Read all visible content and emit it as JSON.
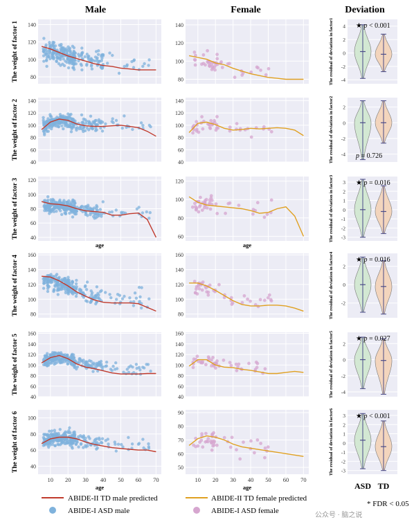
{
  "headers": {
    "male": "Male",
    "female": "Female",
    "deviation": "Deviation"
  },
  "age_label": "age",
  "violin_groups": [
    "ASD",
    "TD"
  ],
  "legend": {
    "male_line": "ABIDE-II TD  male predicted",
    "male_points": "ABIDE-I ASD male",
    "female_line": "ABIDE-II TD female  predicted",
    "female_points": "ABIDE-I ASD female",
    "fdr_note": "* FDR < 0.05",
    "watermark": "公众号 · 脑之说"
  },
  "colors": {
    "male_line": "#c0392b",
    "male_points": "#7fb2dc",
    "female_line": "#e0a020",
    "female_points": "#d6a6cf",
    "asd_violin": "#d3e8d3",
    "td_violin": "#f3d5bd",
    "panel_bg": "#ececf5",
    "grid": "#ffffff",
    "violin_edge": "#4a4a88"
  },
  "chart_data": [
    {
      "type": "scatter",
      "sex": "male",
      "ylabel": "The weight of factor 1",
      "ylim": [
        72,
        146
      ],
      "yticks": [
        80,
        100,
        120,
        140
      ],
      "curve_x": [
        5,
        10,
        15,
        20,
        25,
        30,
        35,
        40,
        45,
        50,
        55,
        60,
        65,
        70
      ],
      "curve_y": [
        115,
        112,
        108,
        104,
        101,
        98,
        95,
        93,
        92,
        90,
        89,
        88,
        88,
        88
      ],
      "cloud": {
        "center": 105,
        "spread": 14,
        "n": 260,
        "seed": 11
      }
    },
    {
      "type": "scatter",
      "sex": "female",
      "ylabel": "",
      "ylim": [
        75,
        146
      ],
      "yticks": [
        80,
        100,
        120,
        140
      ],
      "curve_x": [
        5,
        10,
        15,
        20,
        25,
        30,
        35,
        40,
        45,
        50,
        55,
        60,
        65,
        70
      ],
      "curve_y": [
        106,
        104,
        102,
        98,
        96,
        92,
        89,
        86,
        84,
        82,
        81,
        80,
        80,
        80
      ],
      "cloud": {
        "center": 98,
        "spread": 13,
        "n": 45,
        "seed": 12
      }
    },
    {
      "type": "scatter",
      "sex": "male",
      "ylabel": "The weight of factor 2",
      "ylim": [
        40,
        145
      ],
      "yticks": [
        40,
        60,
        80,
        100,
        120,
        140
      ],
      "curve_x": [
        5,
        10,
        15,
        20,
        25,
        30,
        35,
        40,
        45,
        50,
        55,
        60,
        65,
        70
      ],
      "curve_y": [
        93,
        105,
        110,
        108,
        102,
        99,
        98,
        98,
        99,
        100,
        98,
        96,
        90,
        82
      ],
      "cloud": {
        "center": 102,
        "spread": 14,
        "n": 260,
        "seed": 21
      }
    },
    {
      "type": "scatter",
      "sex": "female",
      "ylabel": "",
      "ylim": [
        40,
        145
      ],
      "yticks": [
        40,
        60,
        80,
        100,
        120,
        140
      ],
      "curve_x": [
        5,
        10,
        15,
        20,
        25,
        30,
        35,
        40,
        45,
        50,
        55,
        60,
        65,
        70
      ],
      "curve_y": [
        88,
        103,
        105,
        101,
        95,
        92,
        93,
        95,
        94,
        95,
        96,
        95,
        92,
        83
      ],
      "cloud": {
        "center": 98,
        "spread": 14,
        "n": 45,
        "seed": 22
      }
    },
    {
      "type": "scatter",
      "sex": "male",
      "ylabel": "The weight of factor 3",
      "ylim": [
        35,
        125
      ],
      "yticks": [
        40,
        60,
        80,
        100,
        120
      ],
      "curve_x": [
        5,
        10,
        15,
        20,
        25,
        30,
        35,
        40,
        45,
        50,
        55,
        60,
        65,
        70
      ],
      "curve_y": [
        90,
        87,
        86,
        84,
        80,
        77,
        76,
        75,
        71,
        71,
        73,
        74,
        65,
        40
      ],
      "cloud": {
        "center": 80,
        "spread": 12,
        "n": 260,
        "seed": 31
      }
    },
    {
      "type": "scatter",
      "sex": "female",
      "ylabel": "",
      "ylim": [
        55,
        125
      ],
      "yticks": [
        60,
        80,
        100,
        120
      ],
      "curve_x": [
        5,
        10,
        15,
        20,
        25,
        30,
        35,
        40,
        45,
        50,
        55,
        60,
        65,
        70
      ],
      "curve_y": [
        103,
        97,
        94,
        93,
        92,
        91,
        90,
        88,
        85,
        86,
        90,
        92,
        82,
        60
      ],
      "cloud": {
        "center": 96,
        "spread": 11,
        "n": 45,
        "seed": 32
      }
    },
    {
      "type": "scatter",
      "sex": "male",
      "ylabel": "The weight of factor 4",
      "ylim": [
        75,
        162
      ],
      "yticks": [
        80,
        100,
        120,
        140,
        160
      ],
      "curve_x": [
        5,
        10,
        15,
        20,
        25,
        30,
        35,
        40,
        45,
        50,
        55,
        60,
        65,
        70
      ],
      "curve_y": [
        131,
        130,
        125,
        118,
        110,
        104,
        99,
        96,
        95,
        95,
        95,
        94,
        89,
        84
      ],
      "cloud": {
        "center": 115,
        "spread": 14,
        "n": 260,
        "seed": 41
      }
    },
    {
      "type": "scatter",
      "sex": "female",
      "ylabel": "",
      "ylim": [
        75,
        162
      ],
      "yticks": [
        80,
        100,
        120,
        140,
        160
      ],
      "curve_x": [
        5,
        10,
        15,
        20,
        25,
        30,
        35,
        40,
        45,
        50,
        55,
        60,
        65,
        70
      ],
      "curve_y": [
        122,
        122,
        118,
        112,
        105,
        98,
        93,
        91,
        91,
        92,
        92,
        91,
        88,
        84
      ],
      "cloud": {
        "center": 110,
        "spread": 14,
        "n": 45,
        "seed": 42
      }
    },
    {
      "type": "scatter",
      "sex": "male",
      "ylabel": "The weight of factor 5",
      "ylim": [
        40,
        162
      ],
      "yticks": [
        40,
        60,
        80,
        100,
        120,
        140,
        160
      ],
      "curve_x": [
        5,
        10,
        15,
        20,
        25,
        30,
        35,
        40,
        45,
        50,
        55,
        60,
        65,
        70
      ],
      "curve_y": [
        104,
        114,
        118,
        112,
        102,
        96,
        93,
        89,
        85,
        83,
        83,
        83,
        84,
        84
      ],
      "cloud": {
        "center": 110,
        "spread": 13,
        "n": 260,
        "seed": 51
      }
    },
    {
      "type": "scatter",
      "sex": "female",
      "ylabel": "",
      "ylim": [
        40,
        162
      ],
      "yticks": [
        40,
        60,
        80,
        100,
        120,
        140,
        160
      ],
      "curve_x": [
        5,
        10,
        15,
        20,
        25,
        30,
        35,
        40,
        45,
        50,
        55,
        60,
        65,
        70
      ],
      "curve_y": [
        98,
        110,
        110,
        100,
        96,
        95,
        92,
        90,
        87,
        84,
        84,
        86,
        88,
        86
      ],
      "cloud": {
        "center": 104,
        "spread": 14,
        "n": 45,
        "seed": 52
      }
    },
    {
      "type": "scatter",
      "sex": "male",
      "ylabel": "The weight of factor 6",
      "ylim": [
        30,
        110
      ],
      "yticks": [
        40,
        60,
        80,
        100
      ],
      "curve_x": [
        5,
        10,
        15,
        20,
        25,
        30,
        35,
        40,
        45,
        50,
        55,
        60,
        65,
        70
      ],
      "curve_y": [
        68,
        74,
        76,
        76,
        74,
        70,
        67,
        65,
        63,
        62,
        61,
        60,
        60,
        58
      ],
      "cloud": {
        "center": 73,
        "spread": 11,
        "n": 260,
        "seed": 61
      }
    },
    {
      "type": "scatter",
      "sex": "female",
      "ylabel": "",
      "ylim": [
        45,
        92
      ],
      "yticks": [
        50,
        60,
        70,
        80,
        90
      ],
      "curve_x": [
        5,
        10,
        15,
        20,
        25,
        30,
        35,
        40,
        45,
        50,
        55,
        60,
        65,
        70
      ],
      "curve_y": [
        66,
        71,
        73,
        72,
        70,
        67,
        65,
        64,
        63,
        62,
        61,
        60,
        59,
        58
      ],
      "cloud": {
        "center": 66,
        "spread": 8,
        "n": 45,
        "seed": 62
      }
    }
  ],
  "x_axis": {
    "xlim": [
      3,
      73
    ],
    "xticks": [
      10,
      20,
      30,
      40,
      50,
      60,
      70
    ]
  },
  "violins": [
    {
      "ylabel": "The residual of deviation in factor1",
      "yticks": [
        4,
        2,
        0,
        -2,
        -4
      ],
      "ylim": [
        -4.6,
        5
      ],
      "star": "★",
      "p_label": "p",
      "p_text": "< 0.001",
      "p_pos": "top",
      "asd": {
        "med": 0.2,
        "min": -3.8,
        "max": 4.2
      },
      "td": {
        "med": -0.2,
        "min": -2.8,
        "max": 2.8
      }
    },
    {
      "ylabel": "The residual of deviation in factor2",
      "yticks": [
        2,
        0,
        -2,
        -4
      ],
      "ylim": [
        -5,
        3.2
      ],
      "star": "",
      "p_label": "p",
      "p_text": "= 0.726",
      "p_pos": "bottom",
      "asd": {
        "med": 0.0,
        "min": -4.7,
        "max": 2.8
      },
      "td": {
        "med": 0.0,
        "min": -2.6,
        "max": 2.8
      }
    },
    {
      "ylabel": "The residual of deviation in factor3",
      "yticks": [
        3,
        2,
        1,
        0,
        -1,
        -2,
        -3
      ],
      "ylim": [
        -3.4,
        3.6
      ],
      "star": "★",
      "p_label": "p",
      "p_text": "= 0.016",
      "p_pos": "top",
      "asd": {
        "med": 0.0,
        "min": -3.0,
        "max": 3.3
      },
      "td": {
        "med": -0.2,
        "min": -2.6,
        "max": 2.6
      }
    },
    {
      "ylabel": "The residual of deviation in factor4",
      "yticks": [
        2,
        0,
        -2
      ],
      "ylim": [
        -3.6,
        3.4
      ],
      "star": "★",
      "p_label": "p",
      "p_text": "= 0.016",
      "p_pos": "top",
      "asd": {
        "med": 0.0,
        "min": -3.0,
        "max": 3.0
      },
      "td": {
        "med": -0.2,
        "min": -3.2,
        "max": 2.6
      }
    },
    {
      "ylabel": "The residual of deviation in factor5",
      "yticks": [
        2,
        0,
        -2,
        -4
      ],
      "ylim": [
        -4.6,
        3.4
      ],
      "star": "★",
      "p_label": "p",
      "p_text": "= 0.027",
      "p_pos": "top",
      "asd": {
        "med": 0.0,
        "min": -3.6,
        "max": 2.8
      },
      "td": {
        "med": -0.1,
        "min": -4.3,
        "max": 2.6
      }
    },
    {
      "ylabel": "The residual of deviation in factor6",
      "yticks": [
        3,
        2,
        1,
        0,
        -1,
        -2,
        -3
      ],
      "ylim": [
        -3.4,
        3.6
      ],
      "star": "★",
      "p_label": "p",
      "p_text": "< 0.001",
      "p_pos": "top",
      "asd": {
        "med": 0.3,
        "min": -2.8,
        "max": 3.2
      },
      "td": {
        "med": -0.4,
        "min": -3.0,
        "max": 2.4
      }
    }
  ]
}
